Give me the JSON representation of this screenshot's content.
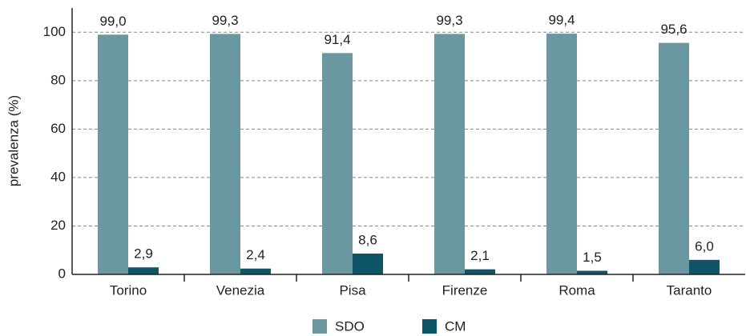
{
  "chart_data": {
    "type": "bar",
    "y_label": "prevalenza (%)",
    "categories": [
      "Torino",
      "Venezia",
      "Pisa",
      "Firenze",
      "Roma",
      "Taranto"
    ],
    "series": [
      {
        "name": "SDO",
        "color": "#6b98a0",
        "values": [
          99.0,
          99.3,
          91.4,
          99.3,
          99.4,
          95.6
        ],
        "value_labels": [
          "99,0",
          "99,3",
          "91,4",
          "99,3",
          "99,4",
          "95,6"
        ]
      },
      {
        "name": "CM",
        "color": "#0d5566",
        "values": [
          2.9,
          2.4,
          8.6,
          2.1,
          1.5,
          6.0
        ],
        "value_labels": [
          "2,9",
          "2,4",
          "8,6",
          "2,1",
          "1,5",
          "6,0"
        ]
      }
    ],
    "ylim": [
      0,
      110
    ],
    "yticks": [
      0,
      20,
      40,
      60,
      80,
      100
    ],
    "grid": true
  }
}
